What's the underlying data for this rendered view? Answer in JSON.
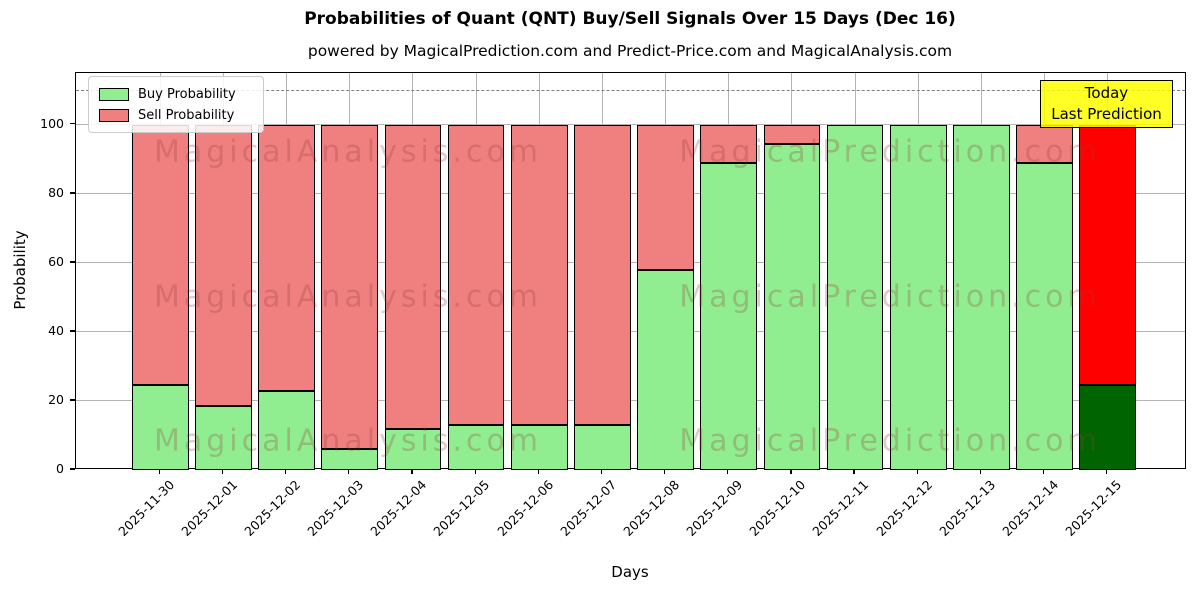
{
  "header": {
    "title": "Probabilities of Quant (QNT) Buy/Sell Signals Over 15 Days (Dec 16)",
    "subtitle": "powered by MagicalPrediction.com and Predict-Price.com and MagicalAnalysis.com"
  },
  "legend": {
    "items": [
      {
        "label": "Buy Probability",
        "color": "#90EE90"
      },
      {
        "label": "Sell Probability",
        "color": "#F08080"
      }
    ]
  },
  "annotation": {
    "line1": "Today",
    "line2": "Last Prediction",
    "bg": "#FFFF00"
  },
  "axes": {
    "xlabel": "Days",
    "ylabel": "Probability",
    "yticks": [
      0,
      20,
      40,
      60,
      80,
      100
    ],
    "ylim": [
      0,
      115
    ],
    "dashed_guide_y": 110,
    "grid": true
  },
  "watermarks": {
    "left_text": "MagicalAnalysis.com",
    "right_text": "MagicalPrediction.com"
  },
  "colors": {
    "buy": "#90EE90",
    "sell": "#F08080",
    "today_buy": "#006400",
    "today_sell": "#FF0000",
    "bar_edge": "#000000",
    "grid": "#b4b4b4",
    "annotation_bg": "#FFFF00"
  },
  "chart_data": {
    "type": "bar",
    "stacked": true,
    "title": "Probabilities of Quant (QNT) Buy/Sell Signals Over 15 Days (Dec 16)",
    "xlabel": "Days",
    "ylabel": "Probability",
    "ylim": [
      0,
      115
    ],
    "legend_position": "upper left",
    "grid": true,
    "categories": [
      "2025-11-30",
      "2025-12-01",
      "2025-12-02",
      "2025-12-03",
      "2025-12-04",
      "2025-12-05",
      "2025-12-06",
      "2025-12-07",
      "2025-12-08",
      "2025-12-09",
      "2025-12-10",
      "2025-12-11",
      "2025-12-12",
      "2025-12-13",
      "2025-12-14",
      "2025-12-15"
    ],
    "series": [
      {
        "name": "Buy Probability",
        "values": [
          24.5,
          18.5,
          23,
          6,
          12,
          13,
          13,
          13,
          58,
          89,
          94.5,
          100,
          100,
          100,
          89,
          24.5
        ]
      },
      {
        "name": "Sell Probability",
        "values": [
          75.5,
          81.5,
          77,
          94,
          88,
          87,
          87,
          87,
          42,
          11,
          5.5,
          0,
          0,
          0,
          11,
          75.5
        ]
      }
    ],
    "today_index": 15
  }
}
